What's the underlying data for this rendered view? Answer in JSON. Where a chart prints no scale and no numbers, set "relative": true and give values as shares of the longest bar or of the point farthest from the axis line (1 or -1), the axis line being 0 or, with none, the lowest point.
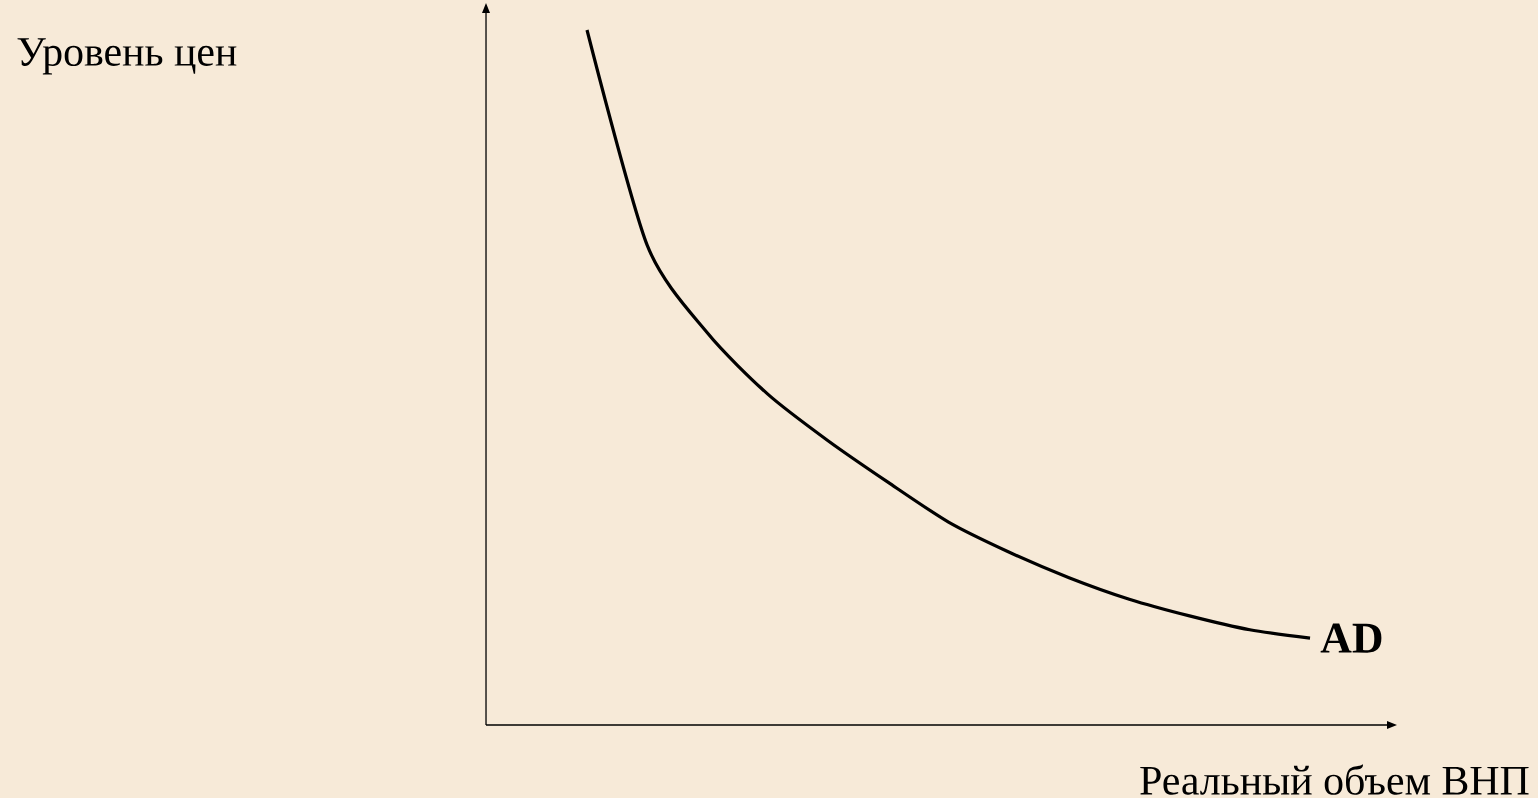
{
  "chart_data": {
    "type": "line",
    "relative": true,
    "annotations": [
      "Уровень цен"
    ],
    "xlabel": "Реальный объем ВНП",
    "categories": [
      null,
      null,
      null,
      null,
      null,
      null,
      null,
      null,
      null,
      null,
      null,
      null,
      null
    ],
    "series": [
      {
        "name": "AD",
        "color": "#000000",
        "values": [
          1,
          0.69,
          0.564,
          0.476,
          0.409,
          0.349,
          0.292,
          0.249,
          0.212,
          0.181,
          0.157,
          0.137,
          0.125
        ]
      }
    ]
  }
}
